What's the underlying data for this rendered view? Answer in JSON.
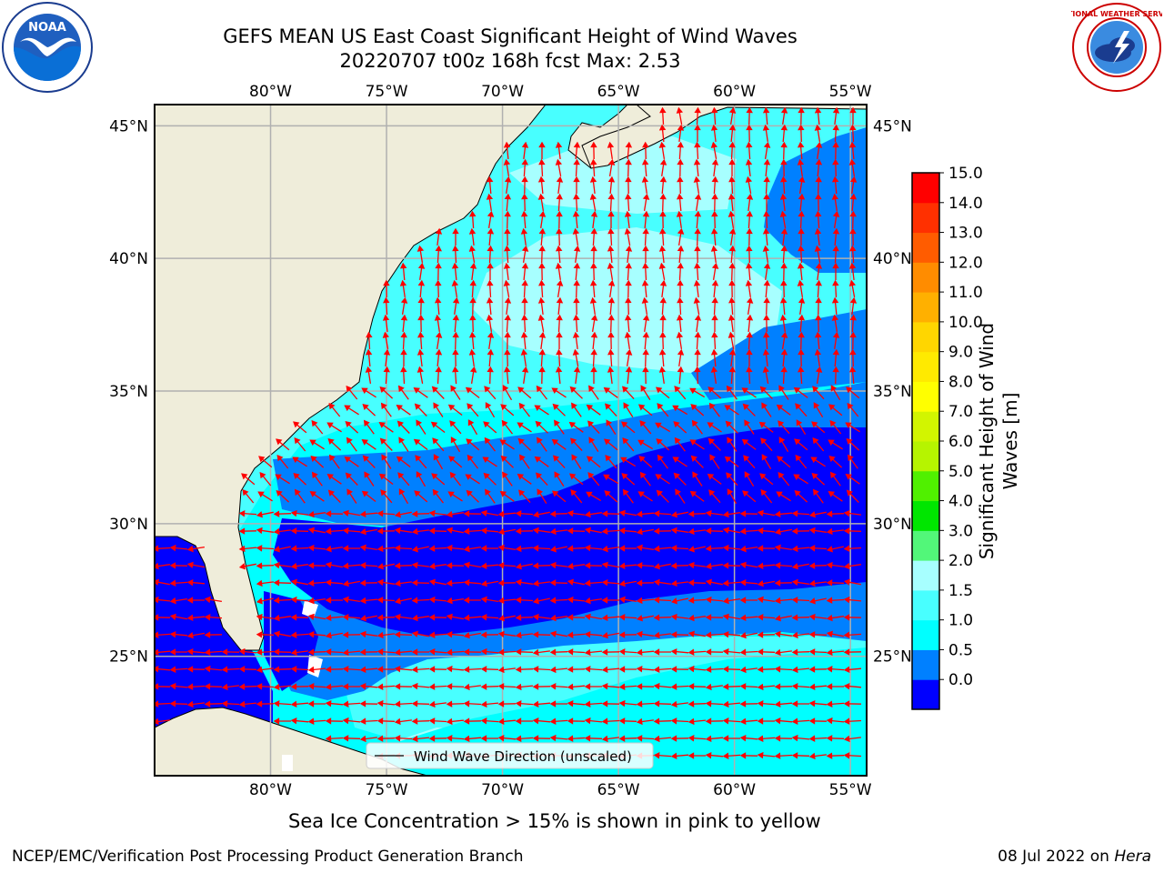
{
  "header": {
    "title_line1": "GEFS MEAN US East Coast Significant Height of Wind Waves",
    "title_line2": "20220707 t00z 168h fcst    Max: 2.53"
  },
  "logos": {
    "left": {
      "icon": "noaa-logo",
      "text": "NOAA"
    },
    "right": {
      "icon": "nws-logo",
      "text": "NATIONAL WEATHER SERVICE"
    }
  },
  "map": {
    "lon_labels": [
      "80°W",
      "75°W",
      "70°W",
      "65°W",
      "60°W",
      "55°W"
    ],
    "lat_labels": [
      "45°N",
      "40°N",
      "35°N",
      "30°N",
      "25°N"
    ],
    "lon_values": [
      -80,
      -75,
      -70,
      -65,
      -60,
      -55
    ],
    "lat_values": [
      45,
      40,
      35,
      30,
      25
    ],
    "extent": {
      "lon_min": -85,
      "lon_max": -54.3,
      "lat_min": 20.5,
      "lat_max": 45.8
    },
    "legend_text": "Wind Wave Direction (unscaled)",
    "colors": {
      "land": "#efedda",
      "coast": "#000000",
      "grid": "#b0b0b0",
      "arrow": "#ff0000"
    }
  },
  "colorbar": {
    "label": "Significant Height of Wind Waves [m]",
    "ticks": [
      "15.0",
      "14.0",
      "13.0",
      "12.0",
      "11.0",
      "10.0",
      "9.0",
      "8.0",
      "7.0",
      "6.0",
      "5.0",
      "4.0",
      "3.0",
      "2.0",
      "1.5",
      "1.0",
      "0.5",
      "0.0"
    ],
    "colors_bottom_to_top": [
      "#0000ff",
      "#0080ff",
      "#00ffff",
      "#48ffff",
      "#a7ffff",
      "#52f779",
      "#00e600",
      "#50f000",
      "#b6f400",
      "#d2f500",
      "#ffff00",
      "#ffea00",
      "#ffd600",
      "#ffb000",
      "#ff8c00",
      "#ff5c00",
      "#ff3000",
      "#ff0000"
    ]
  },
  "footer": {
    "sea_ice_note": "Sea Ice Concentration > 15% is shown in pink to yellow",
    "left": "NCEP/EMC/Verification Post Processing Product Generation Branch",
    "right_date": "08 Jul 2022 on ",
    "right_host": "Hera"
  }
}
